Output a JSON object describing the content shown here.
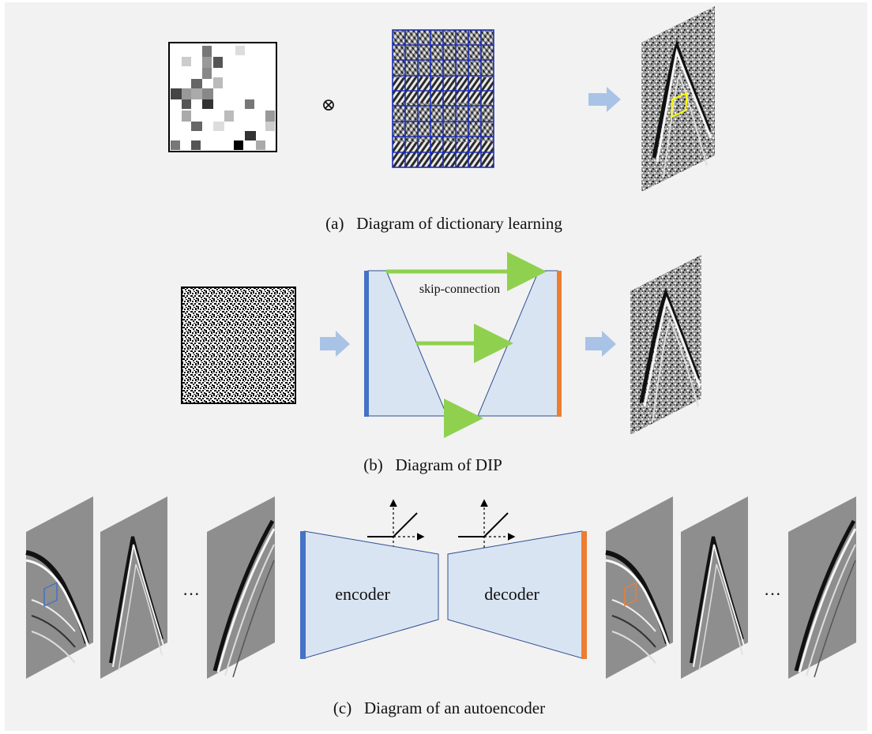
{
  "panels": {
    "a": {
      "caption": "(a)   Diagram of dictionary learning",
      "operator_symbol": "⊗"
    },
    "b": {
      "caption": "(b)   Diagram of DIP",
      "skip_label": "skip-connection"
    },
    "c": {
      "caption": "(c)   Diagram of an autoencoder",
      "encoder_label": "encoder",
      "decoder_label": "decoder",
      "ellipsis": "···"
    }
  },
  "colors": {
    "background": "#f2f2f2",
    "arrow_blue": "#a9c3e6",
    "net_fill": "#d9e4f3",
    "net_stroke": "#2f4f8f",
    "input_bar": "#4472c4",
    "output_bar": "#ed7d31",
    "skip_arrow": "#8fd14f",
    "dictionary_grid": "#1f2fb5",
    "highlight_yellow": "#ffff00"
  }
}
